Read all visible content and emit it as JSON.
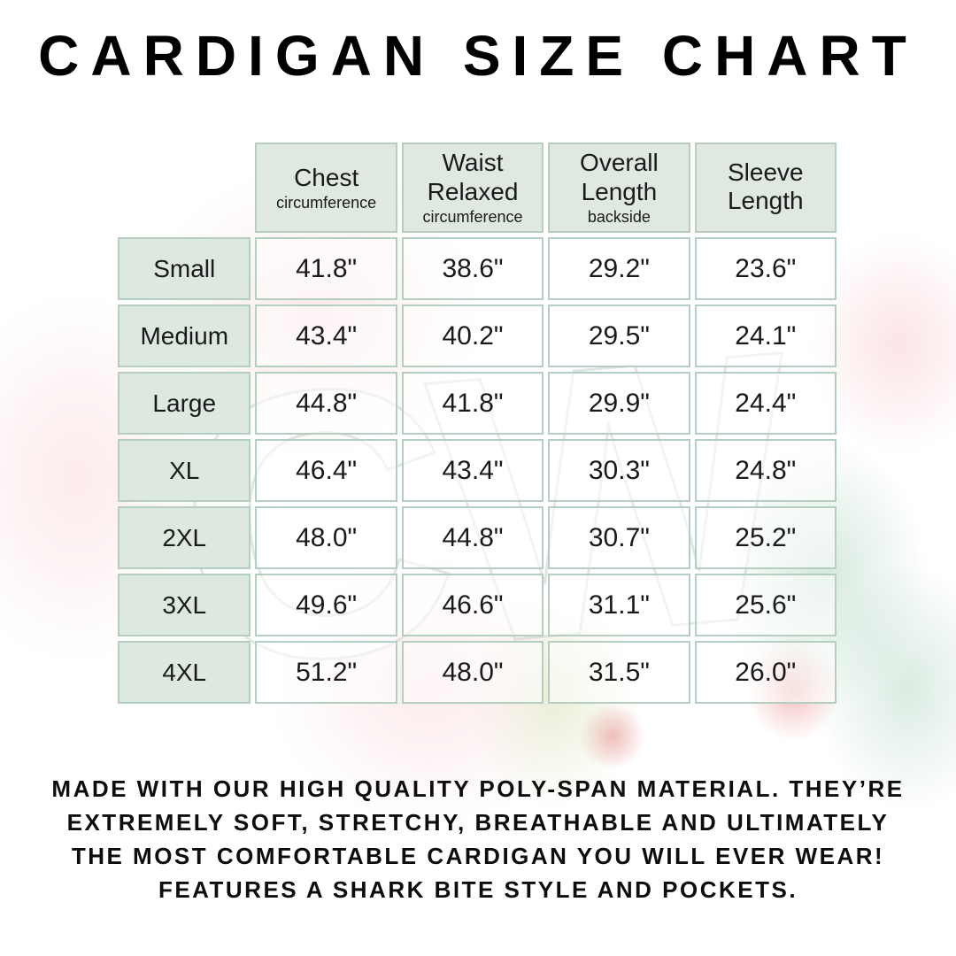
{
  "page": {
    "title": "CARDIGAN SIZE CHART"
  },
  "colors": {
    "table_border": "#b4cec0",
    "header_cell_bg": "#dfe9e2",
    "size_cell_bg": "#dde8e1",
    "data_cell_bg": "rgba(255,255,255,0.55)",
    "title_text": "#000000",
    "watermark_pink": "#f9d6d9",
    "watermark_green": "#96c6ac",
    "watermark_red": "#e05852"
  },
  "watermark": {
    "letters": "CW"
  },
  "chart_data": {
    "type": "table",
    "title": "CARDIGAN SIZE CHART",
    "columns": [
      {
        "label": "Chest",
        "sublabel": "circumference"
      },
      {
        "label": "Waist Relaxed",
        "sublabel": "circumference"
      },
      {
        "label": "Overall Length",
        "sublabel": "backside"
      },
      {
        "label": "Sleeve Length",
        "sublabel": ""
      }
    ],
    "rows": [
      {
        "size": "Small",
        "values": [
          "41.8\"",
          "38.6\"",
          "29.2\"",
          "23.6\""
        ]
      },
      {
        "size": "Medium",
        "values": [
          "43.4\"",
          "40.2\"",
          "29.5\"",
          "24.1\""
        ]
      },
      {
        "size": "Large",
        "values": [
          "44.8\"",
          "41.8\"",
          "29.9\"",
          "24.4\""
        ]
      },
      {
        "size": "XL",
        "values": [
          "46.4\"",
          "43.4\"",
          "30.3\"",
          "24.8\""
        ]
      },
      {
        "size": "2XL",
        "values": [
          "48.0\"",
          "44.8\"",
          "30.7\"",
          "25.2\""
        ]
      },
      {
        "size": "3XL",
        "values": [
          "49.6\"",
          "46.6\"",
          "31.1\"",
          "25.6\""
        ]
      },
      {
        "size": "4XL",
        "values": [
          "51.2\"",
          "48.0\"",
          "31.5\"",
          "26.0\""
        ]
      }
    ]
  },
  "footer": {
    "lines": [
      "MADE WITH OUR HIGH QUALITY POLY-SPAN MATERIAL. THEY’RE",
      "EXTREMELY SOFT, STRETCHY, BREATHABLE AND ULTIMATELY",
      "THE MOST COMFORTABLE CARDIGAN YOU WILL EVER WEAR!",
      "FEATURES A SHARK BITE STYLE AND POCKETS."
    ]
  }
}
